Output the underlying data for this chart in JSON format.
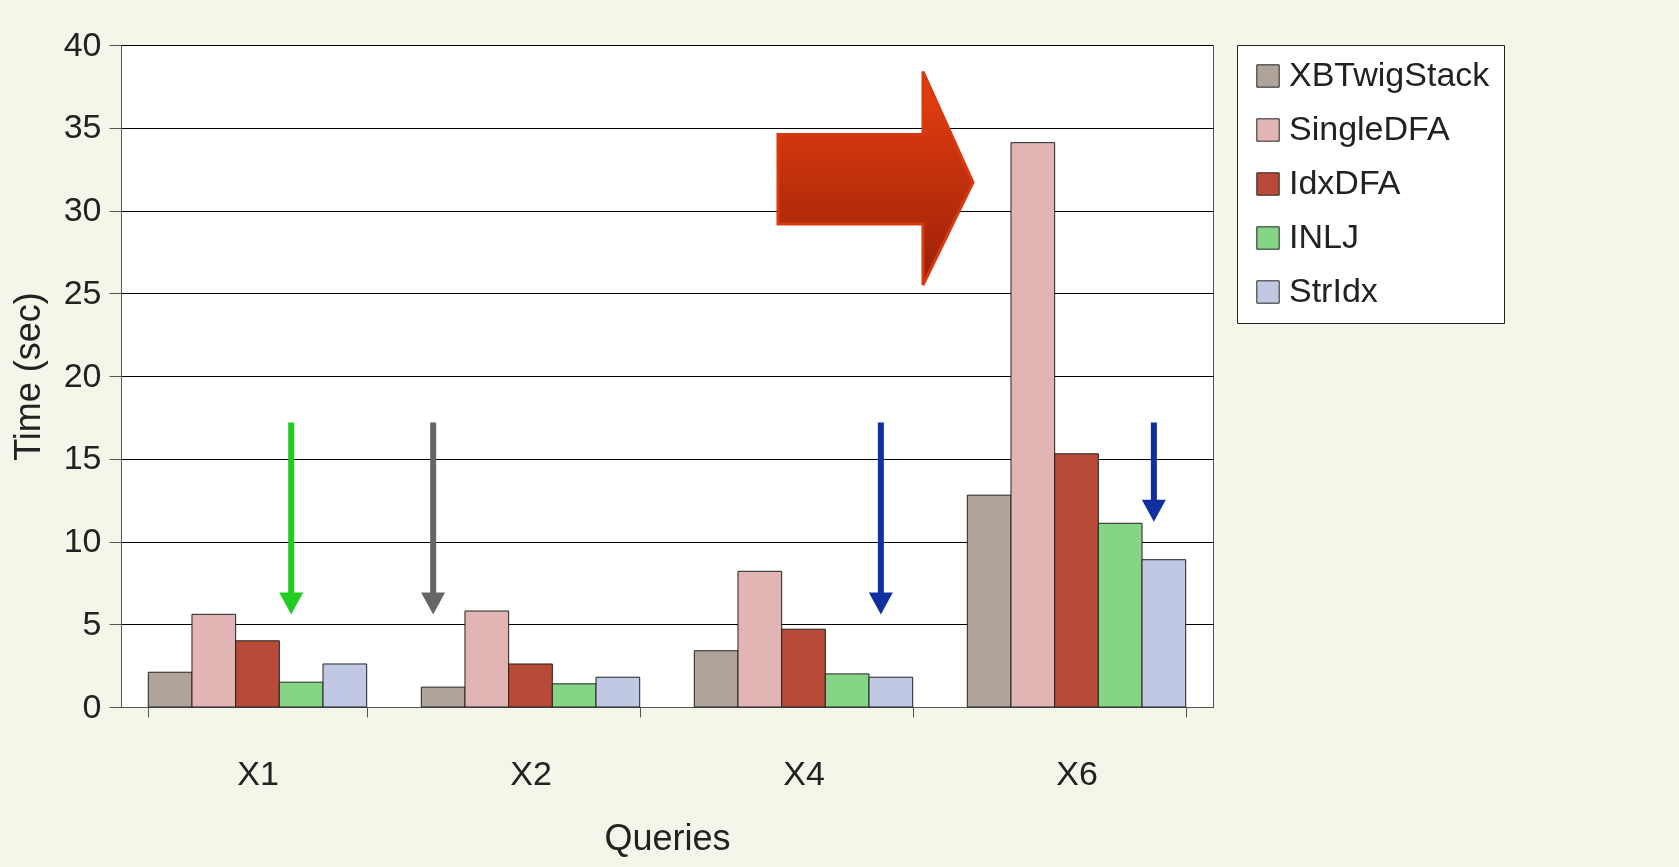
{
  "chart_data": {
    "type": "bar",
    "xlabel": "Queries",
    "ylabel": "Time (sec)",
    "categories": [
      "X1",
      "X2",
      "X4",
      "X6"
    ],
    "series": [
      {
        "name": "XBTwigStack",
        "color": "#b0a49a",
        "values": [
          2.1,
          1.2,
          3.4,
          12.8
        ]
      },
      {
        "name": "SingleDFA",
        "color": "#e2b4b4",
        "values": [
          5.6,
          5.8,
          8.2,
          34.1
        ]
      },
      {
        "name": "IdxDFA",
        "color": "#b84a38",
        "values": [
          4.0,
          2.6,
          4.7,
          15.3
        ]
      },
      {
        "name": "INLJ",
        "color": "#86d486",
        "values": [
          1.5,
          1.4,
          2.0,
          11.1
        ]
      },
      {
        "name": "StrIdx",
        "color": "#c0c8e4",
        "values": [
          2.6,
          1.8,
          1.8,
          8.9
        ]
      }
    ],
    "ylim": [
      0,
      40
    ],
    "yticks": [
      0,
      5,
      10,
      15,
      20,
      25,
      30,
      35,
      40
    ],
    "grid": "y",
    "legend": "right"
  }
}
